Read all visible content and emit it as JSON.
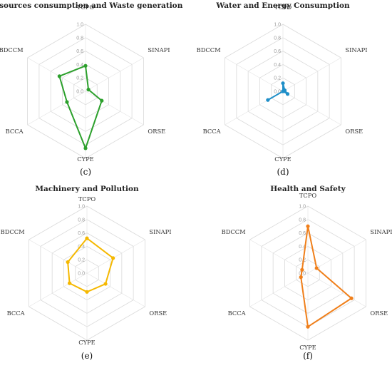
{
  "chart_data": [
    {
      "type": "radar",
      "panel": "(c)",
      "title": "Resources consumption and Waste generation",
      "axes": [
        "TCPO",
        "SINAPI",
        "ORSE",
        "CYPE",
        "BCCA",
        "BDCCM"
      ],
      "ticks": [
        "0.0",
        "0.2",
        "0.4",
        "0.6",
        "0.8",
        "1.0"
      ],
      "rlim": [
        0,
        1
      ],
      "grid": true,
      "color": "#2ca02c",
      "values": [
        0.38,
        0.05,
        0.28,
        0.85,
        0.32,
        0.45
      ]
    },
    {
      "type": "radar",
      "panel": "(d)",
      "title": "Water and Energy Consumption",
      "axes": [
        "TCPO",
        "SINAPI",
        "ORSE",
        "CYPE",
        "BCCA",
        "BDCCM"
      ],
      "ticks": [
        "0.0",
        "0.2",
        "0.4",
        "0.6",
        "0.8",
        "1.0"
      ],
      "rlim": [
        0,
        1
      ],
      "grid": true,
      "color": "#1f8fc8",
      "values": [
        0.12,
        0.03,
        0.08,
        0.0,
        0.26,
        0.0
      ]
    },
    {
      "type": "radar",
      "panel": "(e)",
      "title": "Machinery and Pollution",
      "axes": [
        "TCPO",
        "SINAPI",
        "ORSE",
        "CYPE",
        "BCCA",
        "BDCCM"
      ],
      "ticks": [
        "0.0",
        "0.2",
        "0.4",
        "0.6",
        "0.8",
        "1.0"
      ],
      "rlim": [
        0,
        1
      ],
      "grid": true,
      "color": "#f5b800",
      "values": [
        0.52,
        0.45,
        0.32,
        0.28,
        0.3,
        0.33
      ]
    },
    {
      "type": "radar",
      "panel": "(f)",
      "title": "Health and Safety",
      "axes": [
        "TCPO",
        "SINAPI",
        "ORSE",
        "CYPE",
        "BCCA",
        "BDCCM"
      ],
      "ticks": [
        "0.0",
        "0.2",
        "0.4",
        "0.6",
        "0.8",
        "1.0"
      ],
      "rlim": [
        0,
        1
      ],
      "grid": true,
      "color": "#f07f1a",
      "values": [
        0.7,
        0.15,
        0.75,
        0.8,
        0.12,
        0.1
      ]
    }
  ]
}
